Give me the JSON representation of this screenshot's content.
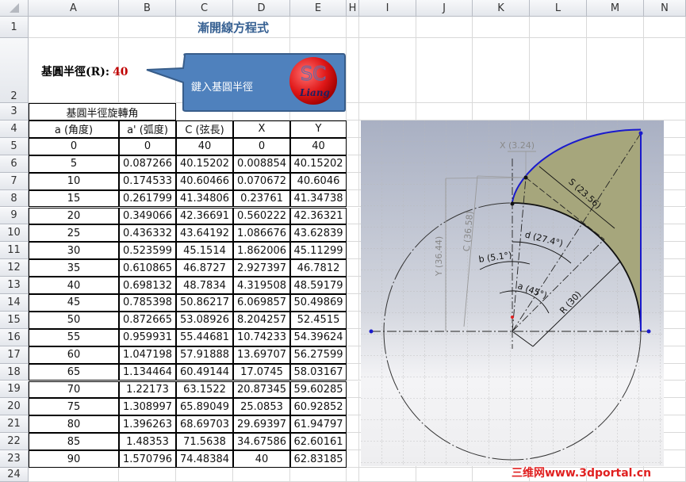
{
  "columns": [
    "A",
    "B",
    "C",
    "D",
    "E",
    "H",
    "I",
    "J",
    "K",
    "L",
    "M",
    "N"
  ],
  "rows": [
    "1",
    "2",
    "3",
    "4",
    "5",
    "6",
    "7",
    "8",
    "9",
    "10",
    "11",
    "12",
    "13",
    "14",
    "15",
    "16",
    "17",
    "18",
    "19",
    "20",
    "21",
    "22",
    "23",
    "24"
  ],
  "sheet": {
    "title": "漸開線方程式",
    "radius_label": "基圓半徑(R):",
    "radius_value": "40",
    "callout_text": "鍵入基圓半徑",
    "logo_text_top": "SC",
    "logo_text_bottom": "Liang",
    "group_header": "基圓半徑旋轉角",
    "headers": [
      "a (角度)",
      "a' (弧度)",
      "C (弦長)",
      "X",
      "Y"
    ],
    "table": [
      [
        "0",
        "0",
        "40",
        "0",
        "40"
      ],
      [
        "5",
        "0.087266",
        "40.15202",
        "0.008854",
        "40.15202"
      ],
      [
        "10",
        "0.174533",
        "40.60466",
        "0.070672",
        "40.6046"
      ],
      [
        "15",
        "0.261799",
        "41.34806",
        "0.23761",
        "41.34738"
      ],
      [
        "20",
        "0.349066",
        "42.36691",
        "0.560222",
        "42.36321"
      ],
      [
        "25",
        "0.436332",
        "43.64192",
        "1.086676",
        "43.62839"
      ],
      [
        "30",
        "0.523599",
        "45.1514",
        "1.862006",
        "45.11299"
      ],
      [
        "35",
        "0.610865",
        "46.8727",
        "2.927397",
        "46.7812"
      ],
      [
        "40",
        "0.698132",
        "48.7834",
        "4.319508",
        "48.59179"
      ],
      [
        "45",
        "0.785398",
        "50.86217",
        "6.069857",
        "50.49869"
      ],
      [
        "50",
        "0.872665",
        "53.08926",
        "8.204257",
        "52.4515"
      ],
      [
        "55",
        "0.959931",
        "55.44681",
        "10.74233",
        "54.39624"
      ],
      [
        "60",
        "1.047198",
        "57.91888",
        "13.69707",
        "56.27599"
      ],
      [
        "65",
        "1.134464",
        "60.49144",
        "17.0745",
        "58.03167"
      ],
      [
        "70",
        "1.22173",
        "63.1522",
        "20.87345",
        "59.60285"
      ],
      [
        "75",
        "1.308997",
        "65.89049",
        "25.0853",
        "60.92852"
      ],
      [
        "80",
        "1.396263",
        "68.69703",
        "29.69397",
        "61.94797"
      ],
      [
        "85",
        "1.48353",
        "71.5638",
        "34.67586",
        "62.60161"
      ],
      [
        "90",
        "1.570796",
        "74.48384",
        "40",
        "62.83185"
      ]
    ]
  },
  "drawing": {
    "labels": {
      "x": "X (3.24)",
      "s": "S (23.56)",
      "c": "C (36.58)",
      "y": "Y (36.44)",
      "d": "d (27.4°)",
      "b": "b (5.1°)",
      "a": "a (45°)",
      "r": "R (30)"
    },
    "colors": {
      "fill": "#a6a67c",
      "involute": "#1a1acc",
      "callout": "#4f81bd",
      "logo": "#e01818"
    }
  },
  "watermark": "三维网www.3dportal.cn"
}
